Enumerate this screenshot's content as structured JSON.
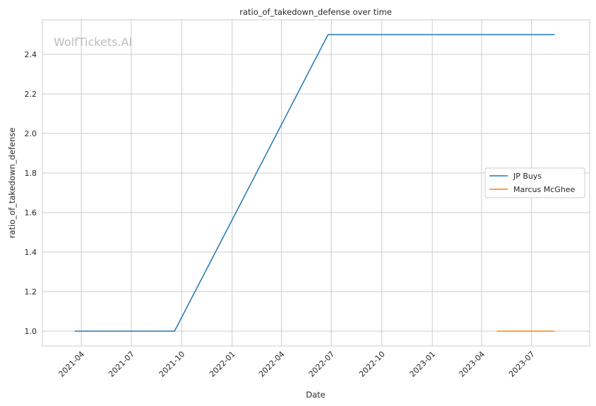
{
  "chart_data": {
    "type": "line",
    "title": "ratio_of_takedown_defense over time",
    "xlabel": "Date",
    "ylabel": "ratio_of_takedown_defense",
    "watermark": "WolfTickets.AI",
    "grid": true,
    "legend_position": "right",
    "xlim": [
      "2021-01-20",
      "2023-10-15"
    ],
    "ylim": [
      0.925,
      2.575
    ],
    "x_ticks": [
      "2021-04",
      "2021-07",
      "2021-10",
      "2022-01",
      "2022-04",
      "2022-07",
      "2022-10",
      "2023-01",
      "2023-04",
      "2023-07"
    ],
    "x_tick_dates": [
      "2021-04-01",
      "2021-07-01",
      "2021-10-01",
      "2022-01-01",
      "2022-04-01",
      "2022-07-01",
      "2022-10-01",
      "2023-01-01",
      "2023-04-01",
      "2023-07-01"
    ],
    "y_ticks": [
      "1.0",
      "1.2",
      "1.4",
      "1.6",
      "1.8",
      "2.0",
      "2.2",
      "2.4"
    ],
    "y_tick_values": [
      1.0,
      1.2,
      1.4,
      1.6,
      1.8,
      2.0,
      2.2,
      2.4
    ],
    "series": [
      {
        "name": "JP Buys",
        "color": "#1f77b4",
        "points": [
          {
            "x": "2021-03-20",
            "y": 1.0
          },
          {
            "x": "2021-09-18",
            "y": 1.0
          },
          {
            "x": "2022-06-25",
            "y": 2.5
          },
          {
            "x": "2023-08-12",
            "y": 2.5
          }
        ]
      },
      {
        "name": "Marcus McGhee",
        "color": "#ff7f0e",
        "points": [
          {
            "x": "2023-04-29",
            "y": 1.0
          },
          {
            "x": "2023-08-12",
            "y": 1.0
          }
        ]
      }
    ]
  }
}
